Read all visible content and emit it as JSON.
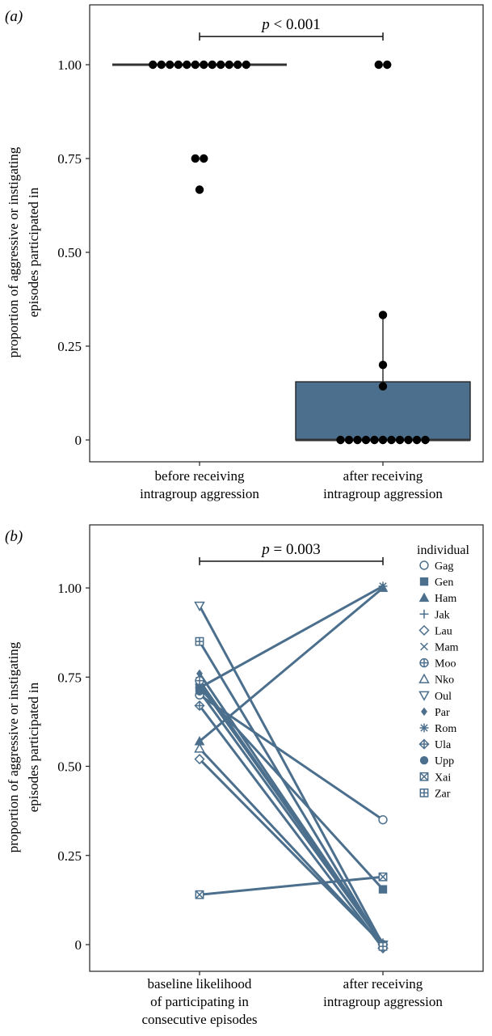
{
  "chart_data": [
    {
      "type": "box",
      "panel_label": "(a)",
      "ylabel_lines": [
        "proportion of aggressive or instigating",
        "episodes participated in"
      ],
      "yticks": [
        "0",
        "0.25",
        "0.50",
        "0.75",
        "1.00"
      ],
      "ytick_values": [
        0,
        0.25,
        0.5,
        0.75,
        1.0
      ],
      "ylim": [
        -0.06,
        1.14
      ],
      "categories": [
        {
          "lines": [
            "before receiving",
            "intragroup aggression"
          ]
        },
        {
          "lines": [
            "after receiving",
            "intragroup aggression"
          ]
        }
      ],
      "box_color": "#4b6f8c",
      "significance": {
        "p": "p",
        "rest": " < 0.001",
        "between": [
          0,
          1
        ],
        "level": 1.075
      },
      "groups": [
        {
          "box": {
            "q1": 1.0,
            "median": 1.0,
            "q3": 1.0,
            "whisker_low": 1.0,
            "whisker_high": 1.0
          },
          "points": [
            1,
            1,
            1,
            1,
            1,
            1,
            1,
            1,
            1,
            1,
            1,
            1,
            0.75,
            0.75,
            0.667
          ]
        },
        {
          "box": {
            "q1": 0.0,
            "median": 0.0,
            "q3": 0.155,
            "whisker_low": 0.0,
            "whisker_high": 0.333
          },
          "points": [
            1,
            1,
            0.333,
            0.2,
            0.143,
            0,
            0,
            0,
            0,
            0,
            0,
            0,
            0,
            0,
            0,
            0
          ]
        }
      ]
    },
    {
      "type": "line",
      "panel_label": "(b)",
      "ylabel_lines": [
        "proportion of aggressive or instigating",
        "episodes participated in"
      ],
      "yticks": [
        "0",
        "0.25",
        "0.50",
        "0.75",
        "1.00"
      ],
      "ytick_values": [
        0,
        0.25,
        0.5,
        0.75,
        1.0
      ],
      "ylim": [
        -0.06,
        1.14
      ],
      "categories": [
        {
          "lines": [
            "baseline likelihood",
            "of participating in",
            "consecutive episodes"
          ]
        },
        {
          "lines": [
            "after receiving",
            "intragroup aggression"
          ]
        }
      ],
      "line_color": "#4b6f8c",
      "significance": {
        "p": "p",
        "rest": " = 0.003",
        "between": [
          0,
          1
        ],
        "level": 1.075
      },
      "legend": {
        "title": "individual",
        "position": "top-right"
      },
      "series": [
        {
          "name": "Gag",
          "marker": "circle-open",
          "values": [
            0.7,
            0.35
          ]
        },
        {
          "name": "Gen",
          "marker": "square-filled",
          "values": [
            0.72,
            0.155
          ]
        },
        {
          "name": "Ham",
          "marker": "triangle-filled",
          "values": [
            0.57,
            1.0
          ]
        },
        {
          "name": "Jak",
          "marker": "plus",
          "values": [
            0.73,
            0.005
          ]
        },
        {
          "name": "Lau",
          "marker": "diamond-open",
          "values": [
            0.52,
            0.0
          ]
        },
        {
          "name": "Mam",
          "marker": "x",
          "values": [
            0.74,
            0.0
          ]
        },
        {
          "name": "Moo",
          "marker": "circle-plus",
          "values": [
            0.74,
            0.0
          ]
        },
        {
          "name": "Nko",
          "marker": "triangle-open",
          "values": [
            0.55,
            0.0
          ]
        },
        {
          "name": "Oul",
          "marker": "triangle-down-open",
          "values": [
            0.95,
            0.0
          ]
        },
        {
          "name": "Par",
          "marker": "diamond-filled",
          "values": [
            0.76,
            0.0
          ]
        },
        {
          "name": "Rom",
          "marker": "asterisk",
          "values": [
            0.72,
            1.005
          ]
        },
        {
          "name": "Ula",
          "marker": "diamond-plus",
          "values": [
            0.67,
            -0.01
          ]
        },
        {
          "name": "Upp",
          "marker": "circle-filled",
          "values": [
            0.71,
            0.0
          ]
        },
        {
          "name": "Xai",
          "marker": "square-x",
          "values": [
            0.14,
            0.19
          ]
        },
        {
          "name": "Zar",
          "marker": "square-plus",
          "values": [
            0.85,
            -0.005
          ]
        }
      ]
    }
  ]
}
